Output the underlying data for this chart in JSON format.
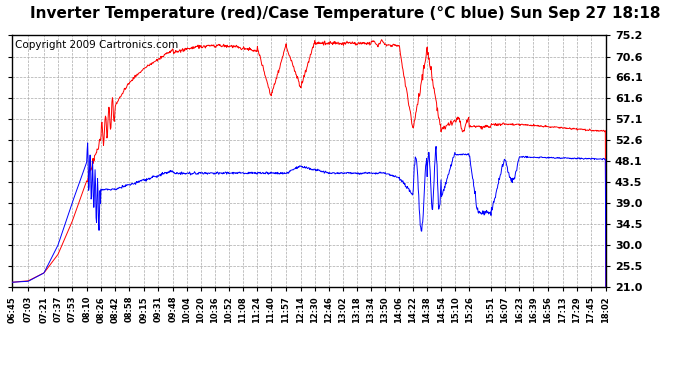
{
  "title": "Inverter Temperature (red)/Case Temperature (°C blue) Sun Sep 27 18:18",
  "copyright": "Copyright 2009 Cartronics.com",
  "yticks": [
    21.0,
    25.5,
    30.0,
    34.5,
    39.0,
    43.5,
    48.1,
    52.6,
    57.1,
    61.6,
    66.1,
    70.6,
    75.2
  ],
  "ylim": [
    21.0,
    75.2
  ],
  "xtick_labels": [
    "06:45",
    "07:03",
    "07:21",
    "07:37",
    "07:53",
    "08:10",
    "08:26",
    "08:42",
    "08:58",
    "09:15",
    "09:31",
    "09:48",
    "10:04",
    "10:20",
    "10:36",
    "10:52",
    "11:08",
    "11:24",
    "11:40",
    "11:57",
    "12:14",
    "12:30",
    "12:46",
    "13:02",
    "13:18",
    "13:34",
    "13:50",
    "14:06",
    "14:22",
    "14:38",
    "14:54",
    "15:10",
    "15:26",
    "15:51",
    "16:07",
    "16:23",
    "16:39",
    "16:56",
    "17:13",
    "17:29",
    "17:45",
    "18:02"
  ],
  "background_color": "#ffffff",
  "plot_bg_color": "#ffffff",
  "grid_color": "#aaaaaa",
  "red_color": "#ff0000",
  "blue_color": "#0000ff",
  "title_fontsize": 11,
  "copyright_fontsize": 7.5
}
